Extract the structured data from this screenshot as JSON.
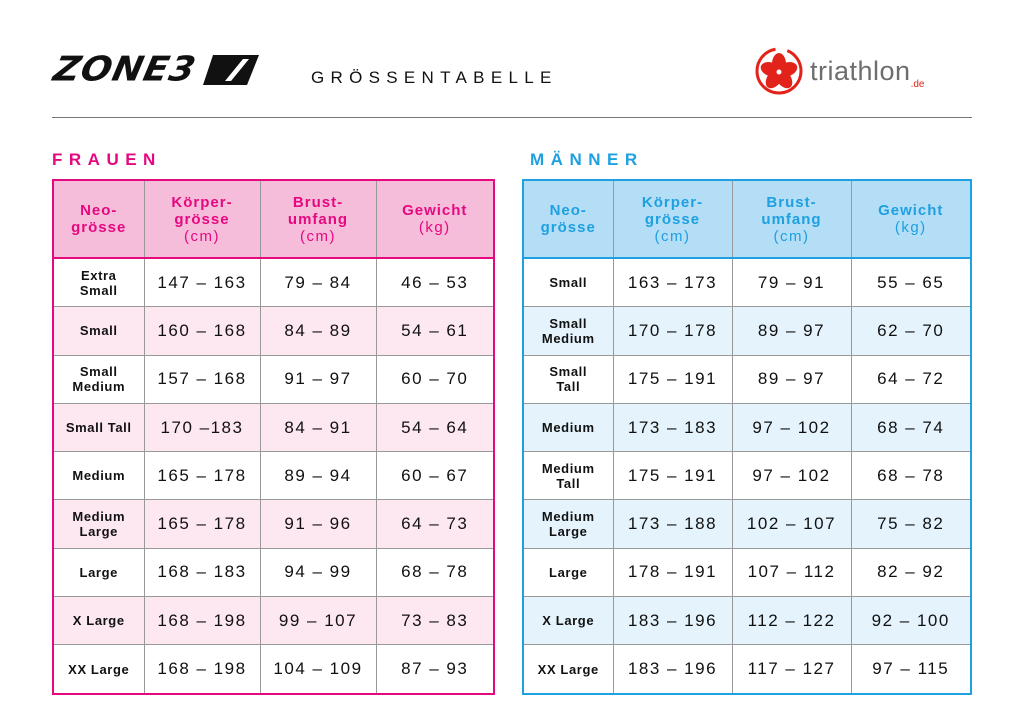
{
  "header": {
    "brand_logo": "ZONE3",
    "title": "GRÖSSENTABELLE",
    "partner_logo": {
      "name": "triathlon",
      "tld": ".de"
    }
  },
  "colors": {
    "women_accent": "#e5097f",
    "men_accent": "#1ea0e1",
    "partner_red": "#e2231a"
  },
  "women": {
    "title": "FRAUEN",
    "headers": [
      {
        "label": "Neo-\ngrösse",
        "unit": ""
      },
      {
        "label": "Körper-\ngrösse",
        "unit": "(cm)"
      },
      {
        "label": "Brust-\numfang",
        "unit": "(cm)"
      },
      {
        "label": "Gewicht",
        "unit": "(kg)"
      }
    ],
    "rows": [
      [
        "Extra\nSmall",
        "147 – 163",
        "79 – 84",
        "46 – 53"
      ],
      [
        "Small",
        "160 – 168",
        "84 – 89",
        "54 – 61"
      ],
      [
        "Small\nMedium",
        "157 – 168",
        "91 – 97",
        "60 – 70"
      ],
      [
        "Small Tall",
        "170 –183",
        "84 – 91",
        "54 – 64"
      ],
      [
        "Medium",
        "165 – 178",
        "89 – 94",
        "60 – 67"
      ],
      [
        "Medium\nLarge",
        "165 – 178",
        "91 – 96",
        "64 – 73"
      ],
      [
        "Large",
        "168 – 183",
        "94 – 99",
        "68 – 78"
      ],
      [
        "X Large",
        "168 – 198",
        "99 – 107",
        "73 – 83"
      ],
      [
        "XX Large",
        "168 – 198",
        "104 – 109",
        "87 – 93"
      ]
    ]
  },
  "men": {
    "title": "MÄNNER",
    "headers": [
      {
        "label": "Neo-\ngrösse",
        "unit": ""
      },
      {
        "label": "Körper-\ngrösse",
        "unit": "(cm)"
      },
      {
        "label": "Brust-\numfang",
        "unit": "(cm)"
      },
      {
        "label": "Gewicht",
        "unit": "(kg)"
      }
    ],
    "rows": [
      [
        "Small",
        "163 – 173",
        "79 – 91",
        "55 – 65"
      ],
      [
        "Small\nMedium",
        "170 – 178",
        "89 – 97",
        "62 – 70"
      ],
      [
        "Small\nTall",
        "175 – 191",
        "89 – 97",
        "64 – 72"
      ],
      [
        "Medium",
        "173 – 183",
        "97 – 102",
        "68 – 74"
      ],
      [
        "Medium\nTall",
        "175 – 191",
        "97 – 102",
        "68 – 78"
      ],
      [
        "Medium\nLarge",
        "173 – 188",
        "102 – 107",
        "75 – 82"
      ],
      [
        "Large",
        "178 – 191",
        "107 – 112",
        "82 – 92"
      ],
      [
        "X Large",
        "183 – 196",
        "112 – 122",
        "92 – 100"
      ],
      [
        "XX Large",
        "183 – 196",
        "117 – 127",
        "97 – 115"
      ]
    ]
  }
}
